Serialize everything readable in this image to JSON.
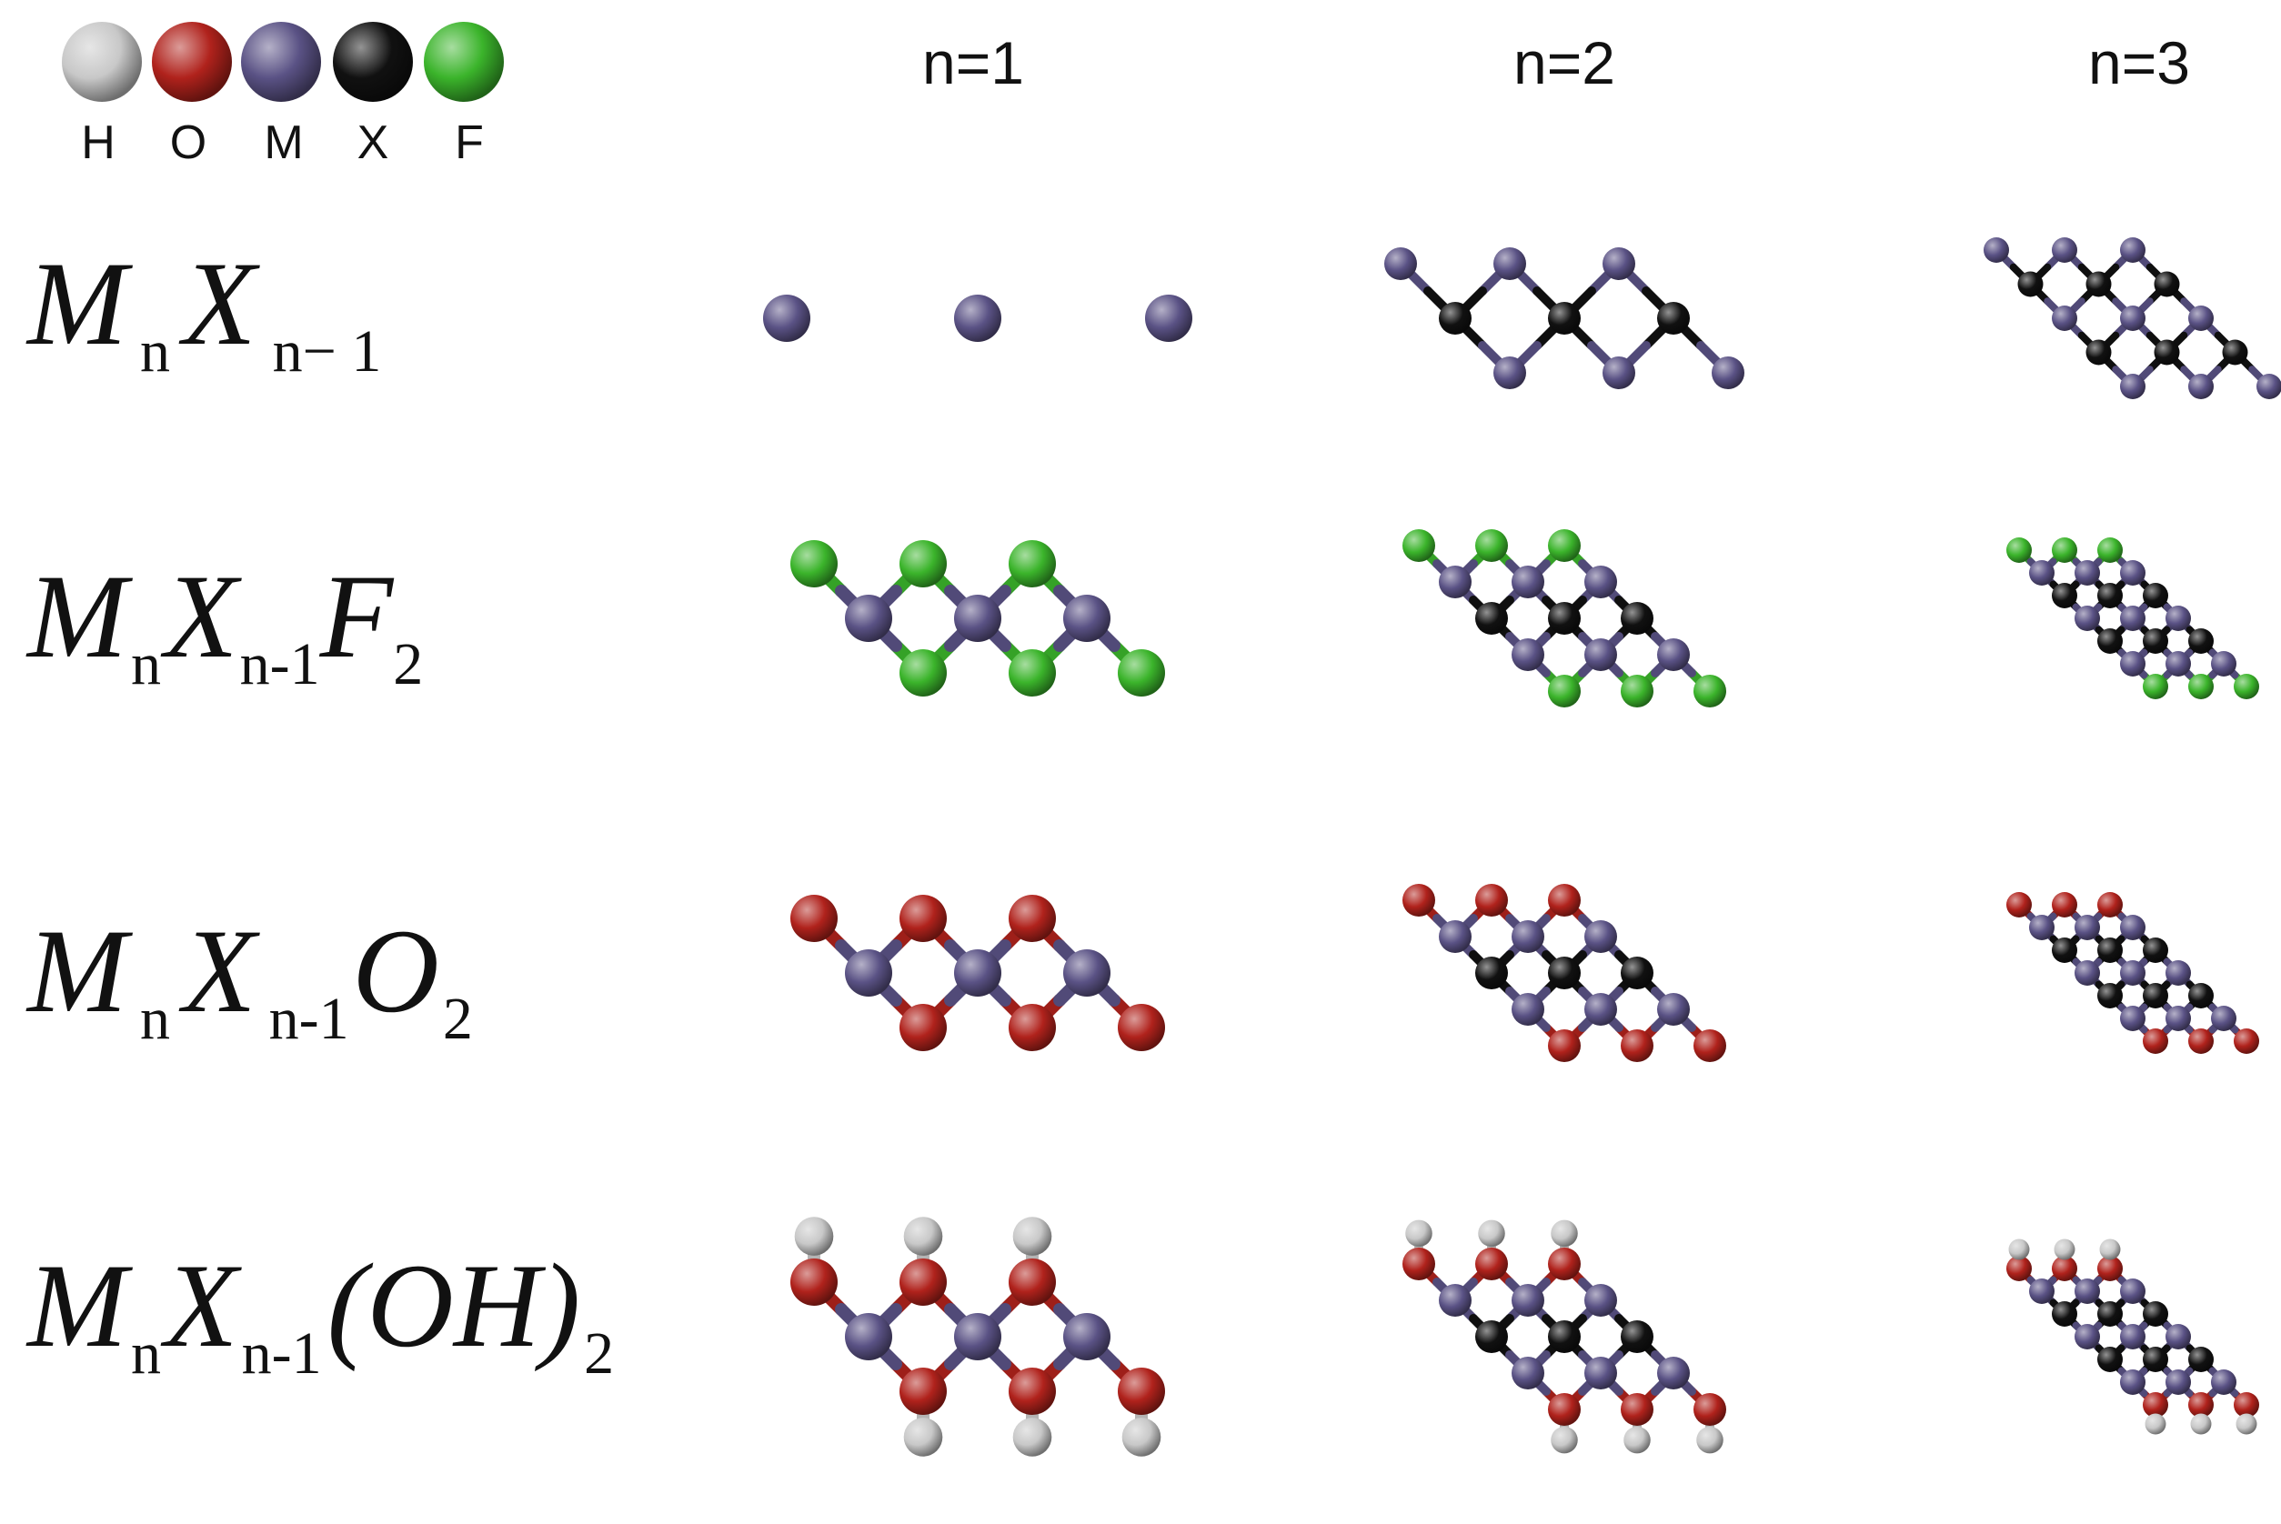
{
  "legend": [
    {
      "label": "H",
      "color": "#c8c8c8",
      "name": "hydrogen"
    },
    {
      "label": "O",
      "color": "#b0221c",
      "name": "oxygen"
    },
    {
      "label": "M",
      "color": "#5a5285",
      "name": "metal"
    },
    {
      "label": "X",
      "color": "#111111",
      "name": "x-element"
    },
    {
      "label": "F",
      "color": "#3bb42b",
      "name": "fluorine"
    }
  ],
  "columns": [
    "n=1",
    "n=2",
    "n=3"
  ],
  "formulas": [
    {
      "main1": "M",
      "sub1": "n",
      "main2": "X",
      "sub2": "n− 1",
      "main3": "",
      "sub3": ""
    },
    {
      "main1": "M",
      "sub1": "n",
      "main2": "X",
      "sub2": "n-1",
      "main3": "F",
      "sub3": "2"
    },
    {
      "main1": "M",
      "sub1": "n",
      "main2": "X",
      "sub2": "n-1",
      "main3": "O",
      "sub3": "2"
    },
    {
      "main1": "M",
      "sub1": "n",
      "main2": "X",
      "sub2": "n-1",
      "main3": "(OH)",
      "sub3": "2"
    }
  ],
  "term_types": [
    "",
    "F",
    "O",
    "OH"
  ],
  "n_values": [
    1,
    2,
    3
  ]
}
